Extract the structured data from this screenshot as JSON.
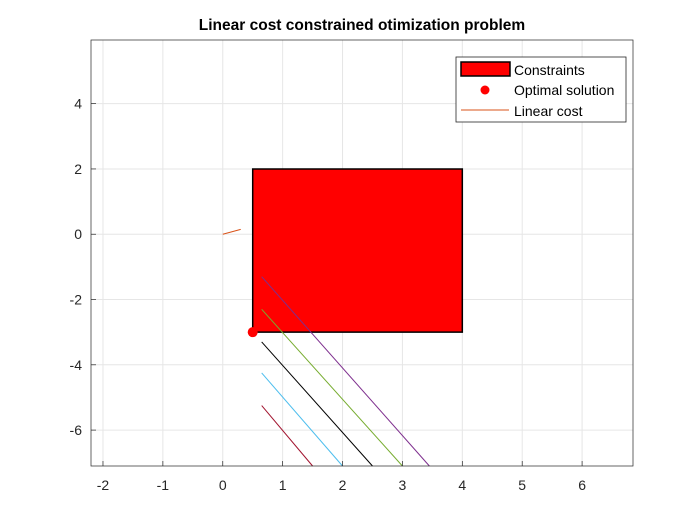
{
  "chart_data": {
    "type": "line",
    "title": "Linear cost constrained otimization problem",
    "xlabel": "",
    "ylabel": "",
    "xlim": [
      -2.2,
      6.85
    ],
    "ylim": [
      -7.1,
      5.95
    ],
    "xticks": [
      -2,
      -1,
      0,
      1,
      2,
      3,
      4,
      5,
      6
    ],
    "yticks": [
      -6,
      -4,
      -2,
      0,
      2,
      4
    ],
    "grid": true,
    "legend": {
      "placement": "top-right",
      "entries": [
        {
          "label": "Constraints",
          "kind": "patch",
          "color": "#ff0000"
        },
        {
          "label": "Optimal solution",
          "kind": "marker",
          "color": "#ff0000"
        },
        {
          "label": "Linear cost",
          "kind": "line",
          "color": "#d95319"
        }
      ]
    },
    "constraints": {
      "name": "Constraints",
      "color": "#ff0000",
      "vertices": [
        [
          0.5,
          -3
        ],
        [
          4,
          -3
        ],
        [
          4,
          2
        ],
        [
          0.5,
          2
        ]
      ]
    },
    "optimal_solution": {
      "name": "Optimal solution",
      "x": 0.5,
      "y": -3,
      "color": "#ff0000"
    },
    "linear_cost": {
      "name": "Linear cost",
      "x": [
        0,
        0.3
      ],
      "y": [
        0,
        0.15
      ],
      "color": "#d95319"
    },
    "level_lines": [
      {
        "x": [
          0.65,
          1.5
        ],
        "y": [
          -5.25,
          -7.1
        ],
        "color": "#a2142f"
      },
      {
        "x": [
          0.65,
          2.0
        ],
        "y": [
          -4.25,
          -7.1
        ],
        "color": "#4dbeee"
      },
      {
        "x": [
          0.65,
          2.5
        ],
        "y": [
          -3.3,
          -7.1
        ],
        "color": "#000000"
      },
      {
        "x": [
          0.65,
          3.0
        ],
        "y": [
          -2.3,
          -7.1
        ],
        "color": "#77ac30"
      },
      {
        "x": [
          0.65,
          3.45
        ],
        "y": [
          -1.3,
          -7.1
        ],
        "color": "#7e2f8e"
      }
    ]
  }
}
